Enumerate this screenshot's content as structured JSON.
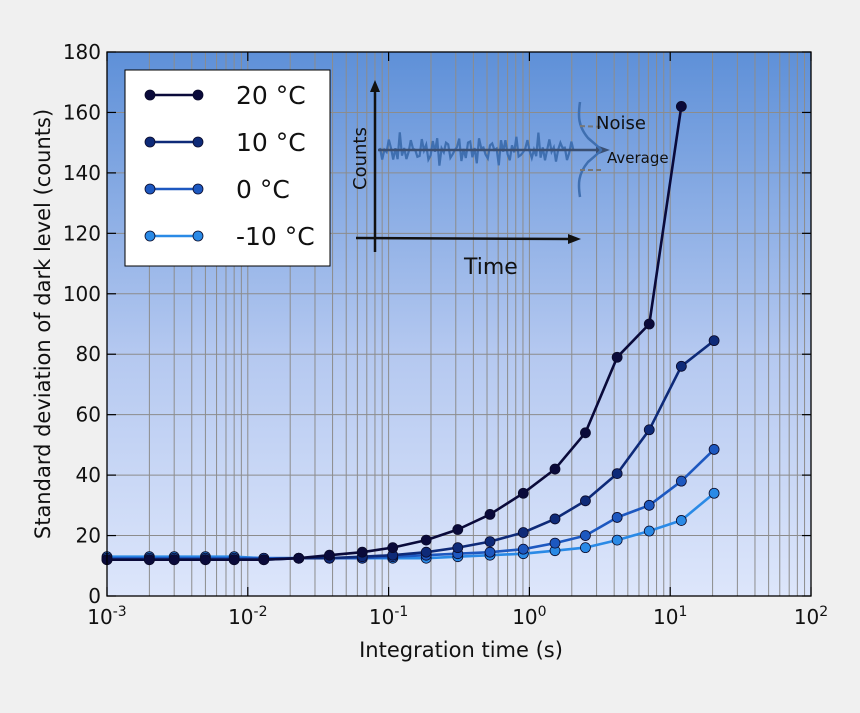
{
  "chart_data": {
    "type": "line",
    "xlabel": "Integration time (s)",
    "ylabel": "Standard deviation of dark level (counts)",
    "xscale": "log",
    "xlim": [
      0.001,
      100
    ],
    "ylim": [
      0,
      180
    ],
    "x_ticks": [
      {
        "base": "10",
        "exp": "-3"
      },
      {
        "base": "10",
        "exp": "-2"
      },
      {
        "base": "10",
        "exp": "-1"
      },
      {
        "base": "10",
        "exp": "0"
      },
      {
        "base": "10",
        "exp": "1"
      },
      {
        "base": "10",
        "exp": "2"
      }
    ],
    "y_ticks": [
      "0",
      "20",
      "40",
      "60",
      "80",
      "100",
      "120",
      "140",
      "160",
      "180"
    ],
    "grid": true,
    "legend_position": "top-left",
    "series": [
      {
        "name": "20 °C",
        "color": "#0a0a3a",
        "x": [
          0.001,
          0.002,
          0.003,
          0.005,
          0.008,
          0.013,
          0.023,
          0.038,
          0.065,
          0.107,
          0.185,
          0.31,
          0.525,
          0.905,
          1.52,
          2.5,
          4.2,
          7.1,
          12.0
        ],
        "y": [
          12,
          12,
          12,
          12,
          12,
          12,
          12.5,
          13.5,
          14.5,
          16,
          18.5,
          22,
          27,
          34,
          42,
          54,
          79,
          90,
          162
        ]
      },
      {
        "name": "10 °C",
        "color": "#0e2a78",
        "x": [
          0.001,
          0.002,
          0.003,
          0.005,
          0.008,
          0.013,
          0.023,
          0.038,
          0.065,
          0.107,
          0.185,
          0.31,
          0.525,
          0.905,
          1.52,
          2.5,
          4.2,
          7.1,
          12.0,
          20.5
        ],
        "y": [
          12,
          12,
          12,
          12,
          12,
          12,
          12.5,
          12.5,
          13,
          13.5,
          14.5,
          16,
          18,
          21,
          25.5,
          31.5,
          40.5,
          55,
          76,
          84.5
        ]
      },
      {
        "name": "0 °C",
        "color": "#1d58c0",
        "x": [
          0.001,
          0.002,
          0.003,
          0.005,
          0.008,
          0.013,
          0.023,
          0.038,
          0.065,
          0.107,
          0.185,
          0.31,
          0.525,
          0.905,
          1.52,
          2.5,
          4.2,
          7.1,
          12.0,
          20.5
        ],
        "y": [
          12.5,
          12.5,
          12.5,
          12.5,
          12.5,
          12.5,
          12.5,
          12.5,
          12.5,
          13,
          13.5,
          14,
          14.5,
          15.5,
          17.5,
          20,
          26,
          30,
          38,
          48.5
        ]
      },
      {
        "name": "-10 °C",
        "color": "#2a8ae6",
        "x": [
          0.001,
          0.002,
          0.003,
          0.005,
          0.008,
          0.013,
          0.023,
          0.038,
          0.065,
          0.107,
          0.185,
          0.31,
          0.525,
          0.905,
          1.52,
          2.5,
          4.2,
          7.1,
          12.0,
          20.5
        ],
        "y": [
          13,
          13,
          13,
          13,
          13,
          12.5,
          12.5,
          12.5,
          12.5,
          12.5,
          12.5,
          13,
          13.5,
          14,
          15,
          16,
          18.5,
          21.5,
          25,
          34
        ]
      }
    ],
    "inset": {
      "x_label": "Time",
      "y_label": "Counts",
      "noise_label": "Noise",
      "average_label": "Average"
    }
  }
}
